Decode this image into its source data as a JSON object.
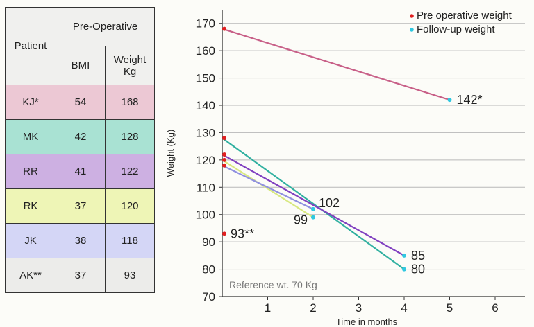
{
  "table": {
    "col_patient": "Patient",
    "col_group": "Pre-Operative",
    "col_bmi": "BMI",
    "col_weight_line1": "Weight",
    "col_weight_line2": "Kg",
    "rows": [
      {
        "patient": "KJ*",
        "bmi": "54",
        "weight": "168",
        "color": "#ecc8d4"
      },
      {
        "patient": "MK",
        "bmi": "42",
        "weight": "128",
        "color": "#a9e2d3"
      },
      {
        "patient": "RR",
        "bmi": "41",
        "weight": "122",
        "color": "#cdb0e2"
      },
      {
        "patient": "RK",
        "bmi": "37",
        "weight": "120",
        "color": "#eef5b6"
      },
      {
        "patient": "JK",
        "bmi": "38",
        "weight": "118",
        "color": "#d4d6f6"
      },
      {
        "patient": "AK**",
        "bmi": "37",
        "weight": "93",
        "color": "#ececea"
      }
    ]
  },
  "chart_data": {
    "type": "line",
    "xlabel": "Time in months",
    "ylabel": "Weight (Kg)",
    "xlim": [
      0,
      6.5
    ],
    "ylim": [
      70,
      175
    ],
    "x_ticks": [
      1,
      2,
      3,
      4,
      5,
      6
    ],
    "y_ticks": [
      70,
      80,
      90,
      100,
      110,
      120,
      130,
      140,
      150,
      160,
      170
    ],
    "grid": true,
    "legend_position": "top-right",
    "legend": [
      {
        "label": "Pre operative weight",
        "color": "#e02020"
      },
      {
        "label": "Follow-up weight",
        "color": "#30c8e0"
      }
    ],
    "reference_text": "Reference wt. 70 Kg",
    "series": [
      {
        "points": [
          [
            0,
            168
          ],
          [
            5,
            142
          ]
        ],
        "color": "#c86088"
      },
      {
        "points": [
          [
            0,
            128
          ],
          [
            4,
            80
          ]
        ],
        "color": "#30b0a0"
      },
      {
        "points": [
          [
            0,
            122
          ],
          [
            4,
            85
          ]
        ],
        "color": "#8040c0"
      },
      {
        "points": [
          [
            0,
            120
          ],
          [
            2,
            99
          ]
        ],
        "color": "#d8e880"
      },
      {
        "points": [
          [
            0,
            118
          ],
          [
            2,
            102
          ]
        ],
        "color": "#9090e0"
      },
      {
        "points": [
          [
            0,
            93
          ]
        ],
        "color": "#e02020"
      }
    ],
    "annotations": [
      {
        "text": "142*",
        "x": 5,
        "y": 142
      },
      {
        "text": "102",
        "x": 2,
        "y": 102
      },
      {
        "text": "99",
        "x": 2,
        "y": 99
      },
      {
        "text": "85",
        "x": 4,
        "y": 85
      },
      {
        "text": "80",
        "x": 4,
        "y": 80
      },
      {
        "text": "93**",
        "x": 0,
        "y": 93
      }
    ]
  }
}
